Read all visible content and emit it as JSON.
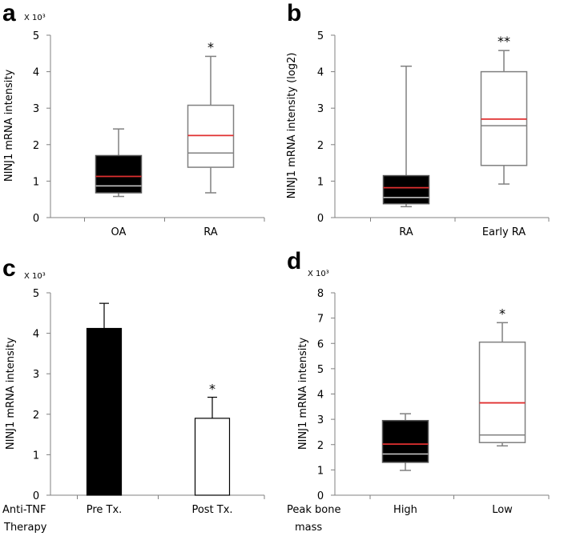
{
  "chart_data": [
    {
      "panel": "a",
      "type": "box",
      "ylabel": "NINJ1 mRNA intensity",
      "multiplier": "X 10³",
      "ylim": [
        0,
        5
      ],
      "yticks": [
        "0",
        "1",
        "2",
        "3",
        "4",
        "5"
      ],
      "categories": [
        "OA",
        "RA"
      ],
      "boxes": [
        {
          "name": "OA",
          "min": 0.58,
          "q1": 0.68,
          "median": 0.87,
          "mean": 1.13,
          "q3": 1.7,
          "max": 2.43,
          "fill": "#000000",
          "sig": ""
        },
        {
          "name": "RA",
          "min": 0.68,
          "q1": 1.38,
          "median": 1.77,
          "mean": 2.25,
          "q3": 3.08,
          "max": 4.42,
          "fill": "#ffffff",
          "sig": "*"
        }
      ]
    },
    {
      "panel": "b",
      "type": "box",
      "ylabel": "NINJ1 mRNA intensity (log2)",
      "multiplier": "",
      "ylim": [
        0,
        5
      ],
      "yticks": [
        "0",
        "1",
        "2",
        "3",
        "4",
        "5"
      ],
      "categories": [
        "RA",
        "Early RA"
      ],
      "boxes": [
        {
          "name": "RA",
          "min": 0.3,
          "q1": 0.38,
          "median": 0.55,
          "mean": 0.82,
          "q3": 1.15,
          "max": 4.15,
          "fill": "#000000",
          "sig": ""
        },
        {
          "name": "Early RA",
          "min": 0.92,
          "q1": 1.43,
          "median": 2.52,
          "mean": 2.7,
          "q3": 4.0,
          "max": 4.58,
          "fill": "#ffffff",
          "sig": "**"
        }
      ]
    },
    {
      "panel": "c",
      "type": "bar",
      "ylabel": "NINJ1 mRNA intensity",
      "multiplier": "X 10³",
      "ylim": [
        0,
        5
      ],
      "yticks": [
        "0",
        "1",
        "2",
        "3",
        "4",
        "5"
      ],
      "group_title": [
        "Anti-TNF",
        "Therapy"
      ],
      "categories": [
        "Pre Tx.",
        "Post Tx."
      ],
      "bars": [
        {
          "name": "Pre Tx.",
          "value": 4.12,
          "error": 0.62,
          "fill": "#000000",
          "sig": ""
        },
        {
          "name": "Post Tx.",
          "value": 1.9,
          "error": 0.52,
          "fill": "#ffffff",
          "sig": "*"
        }
      ]
    },
    {
      "panel": "d",
      "type": "box",
      "ylabel": "NINJ1 mRNA intensity",
      "multiplier": "X 10³",
      "ylim": [
        0,
        8
      ],
      "yticks": [
        "0",
        "1",
        "2",
        "3",
        "4",
        "5",
        "6",
        "7",
        "8"
      ],
      "group_title": [
        "Peak bone",
        "mass"
      ],
      "categories": [
        "High",
        "Low"
      ],
      "boxes": [
        {
          "name": "High",
          "min": 0.98,
          "q1": 1.3,
          "median": 1.63,
          "mean": 2.02,
          "q3": 2.95,
          "max": 3.22,
          "fill": "#000000",
          "sig": ""
        },
        {
          "name": "Low",
          "min": 1.95,
          "q1": 2.08,
          "median": 2.38,
          "mean": 3.65,
          "q3": 6.05,
          "max": 6.82,
          "fill": "#ffffff",
          "sig": "*"
        }
      ]
    }
  ],
  "colors": {
    "mean_line": "#e03030",
    "box_stroke": "#808080",
    "axis": "#808080"
  }
}
